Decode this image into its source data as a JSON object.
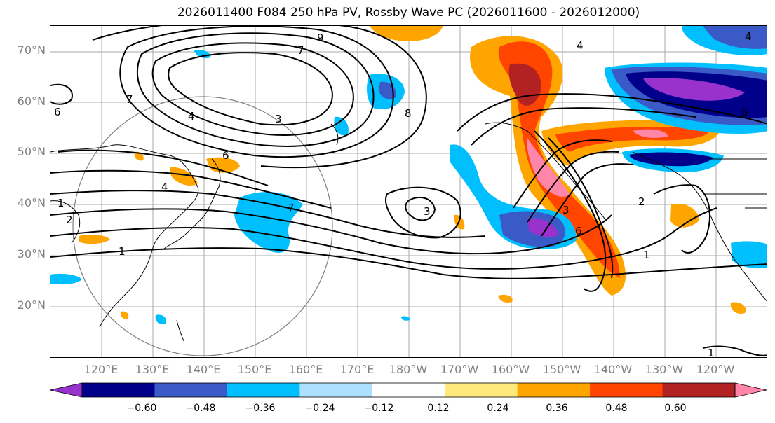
{
  "title": "2026011400 F084 250 hPa PV, Rossby Wave PC (2026011600 - 2026012000)",
  "lat_labels": [
    "70°N",
    "60°N",
    "50°N",
    "40°N",
    "30°N",
    "20°N"
  ],
  "lon_labels": [
    "120°E",
    "130°E",
    "140°E",
    "150°E",
    "160°E",
    "170°E",
    "180°W",
    "170°W",
    "160°W",
    "150°W",
    "140°W",
    "130°W",
    "120°W"
  ],
  "colorbar": {
    "colors": [
      "#9932CC",
      "#00008B",
      "#3A5BC7",
      "#00BFFF",
      "#ADDFFF",
      "#FFFFFF",
      "#FFE87C",
      "#FFA500",
      "#FF4500",
      "#B22222",
      "#FF85A9"
    ],
    "tick_labels": [
      "−0.60",
      "−0.48",
      "−0.36",
      "−0.24",
      "−0.12",
      "0.12",
      "0.24",
      "0.36",
      "0.48",
      "0.60"
    ]
  },
  "contour_labels": [
    "9",
    "7",
    "4",
    "7",
    "8",
    "6",
    "6",
    "4",
    "3",
    "1",
    "2",
    "1",
    "4",
    "4",
    "7",
    "3",
    "3",
    "6",
    "2",
    "1",
    "1",
    "6"
  ]
}
